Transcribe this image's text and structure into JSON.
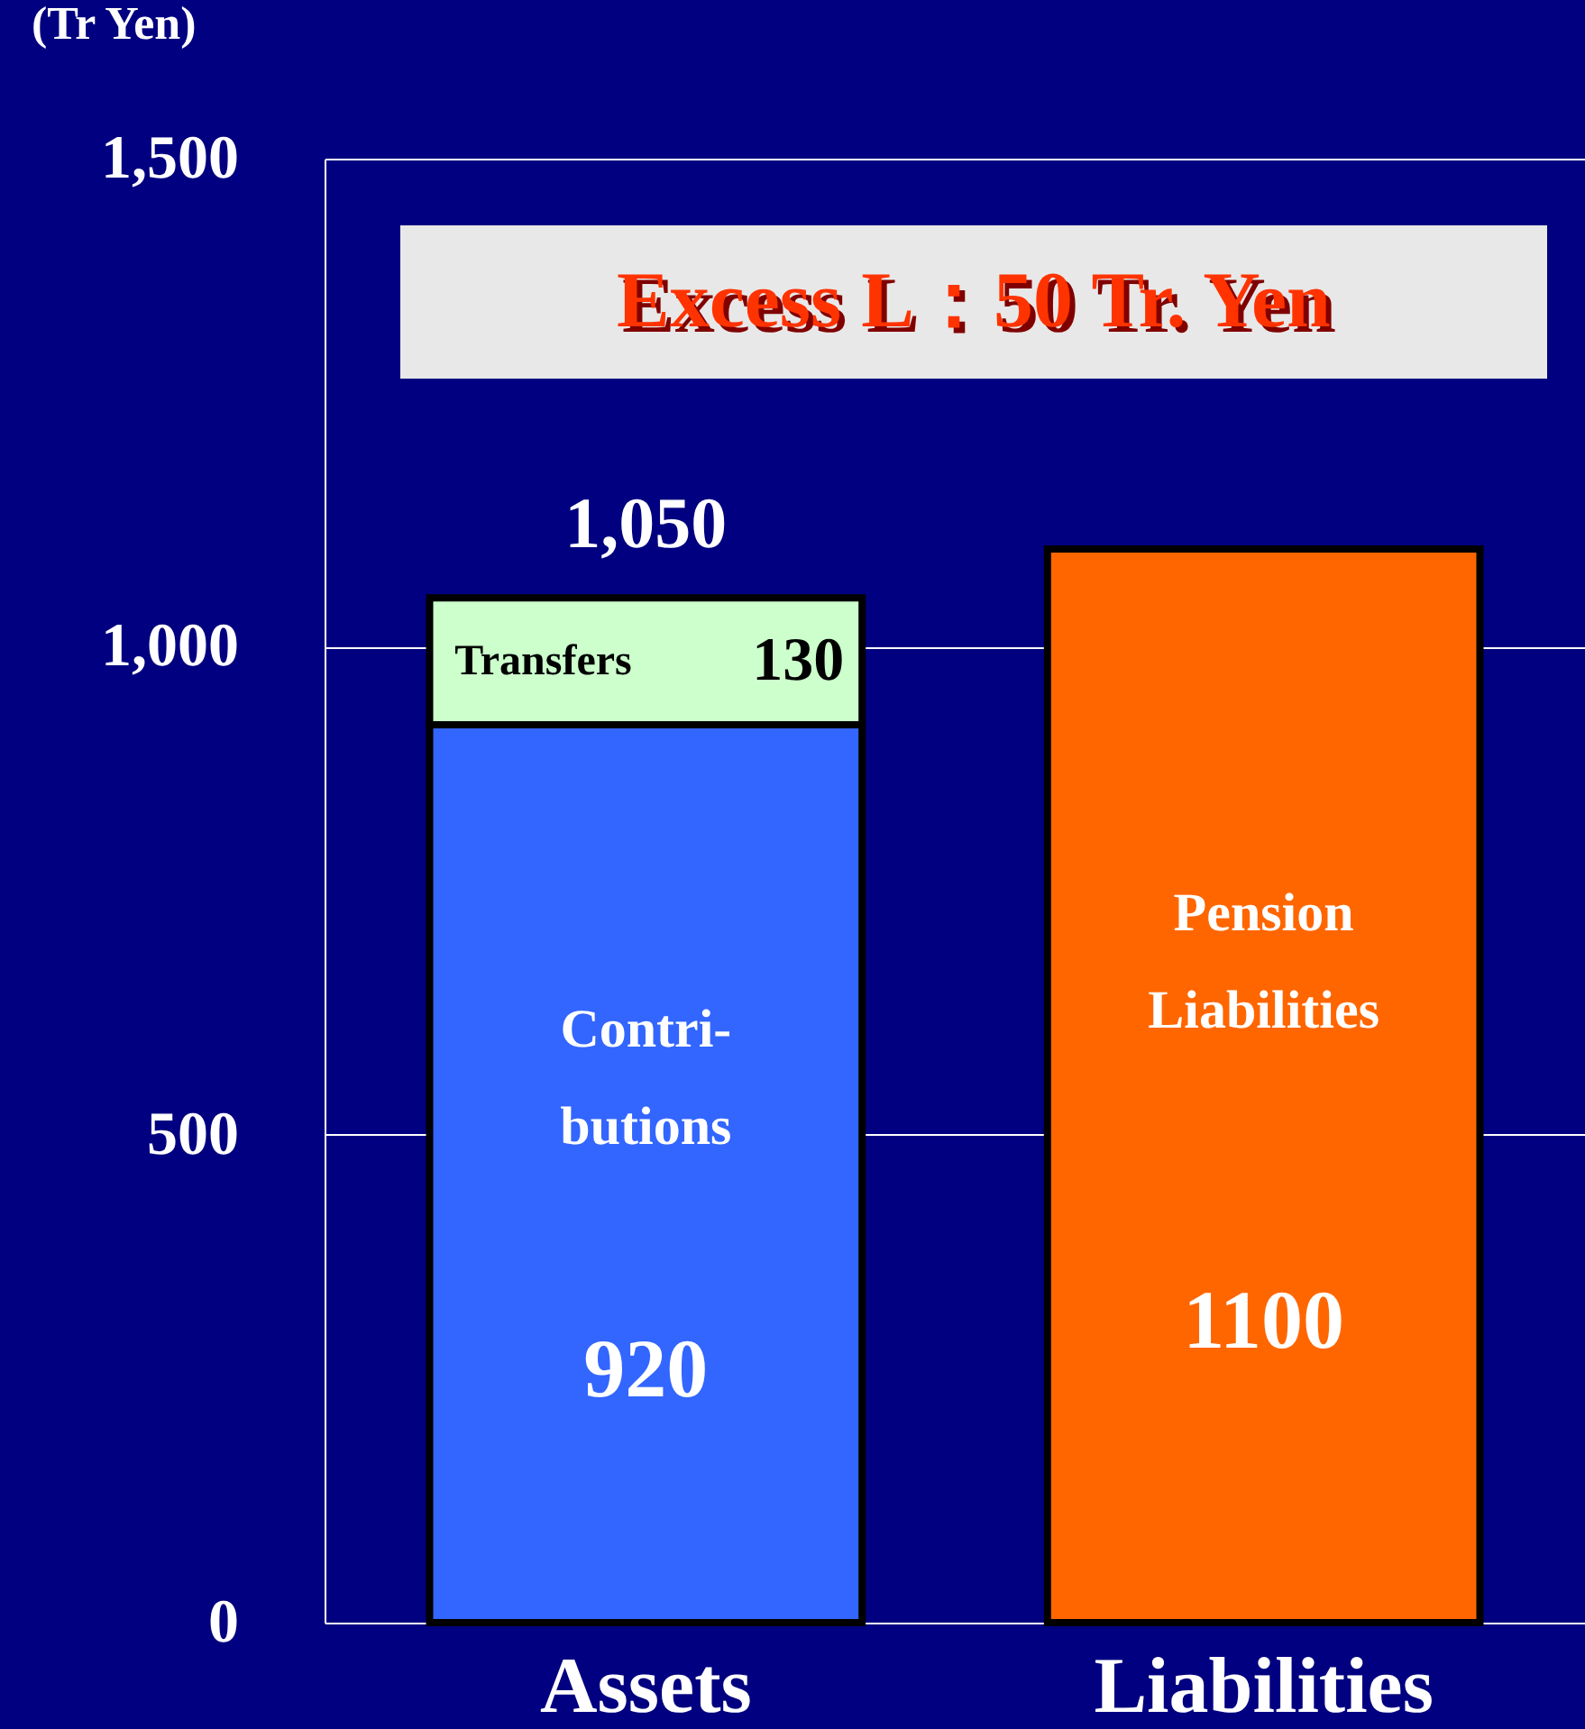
{
  "chart_data": {
    "type": "bar",
    "stacked": true,
    "ylabel": "(Tr Yen)",
    "categories": [
      "Assets",
      "Liabilities"
    ],
    "series": [
      {
        "name": "Contri-\nbutions",
        "color": "#3366ff",
        "values": [
          920,
          null
        ]
      },
      {
        "name": "Transfers",
        "color": "#ccffcc",
        "values": [
          130,
          null
        ]
      },
      {
        "name": "Pension\nLiabilities",
        "color": "#ff6600",
        "values": [
          null,
          1100
        ]
      }
    ],
    "totals": [
      "1,050",
      null
    ],
    "data_labels": true,
    "annotations": [
      "Excess L：50 Tr. Yen"
    ],
    "ylim": [
      0,
      1500
    ],
    "yticks": [
      0,
      {
        "value": 500,
        "label": "500"
      },
      {
        "value": 1000,
        "label": "1,000"
      },
      {
        "value": 1500,
        "label": "1,500"
      }
    ],
    "grid": "y"
  }
}
